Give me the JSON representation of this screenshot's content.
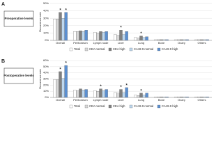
{
  "chart_data": [
    {
      "type": "bar",
      "panel": "A",
      "group_label": "Preoperative levels",
      "ylabel": "Recurrence rate",
      "categories": [
        "Overall",
        "Peritoneum",
        "Lymph node",
        "Liver",
        "Lung",
        "Bone",
        "Ovary",
        "Others"
      ],
      "series": [
        {
          "name": "Total",
          "color": "#ffffff",
          "values": [
            29,
            12,
            11,
            8,
            4,
            1,
            1,
            1
          ]
        },
        {
          "name": "CEA normal",
          "color": "#d9d9d9",
          "values": [
            29,
            12,
            10,
            7,
            3,
            1,
            1,
            1
          ]
        },
        {
          "name": "CEA high",
          "color": "#808080",
          "values": [
            38,
            13,
            12,
            14,
            6,
            1,
            1,
            1
          ]
        },
        {
          "name": "CA19-9 normal",
          "color": "#bdd7ee",
          "values": [
            30,
            12,
            11,
            8,
            4,
            1,
            1,
            1
          ]
        },
        {
          "name": "CA19-9 high",
          "color": "#5b8fd0",
          "values": [
            38,
            14,
            12,
            12,
            5,
            1,
            1,
            1
          ]
        }
      ],
      "annotations": [
        {
          "text": "*",
          "category": "Overall",
          "series": "CEA high"
        },
        {
          "text": "*",
          "category": "Overall",
          "series": "CA19-9 high"
        },
        {
          "text": "*",
          "category": "Liver",
          "series": "CEA high"
        },
        {
          "text": "*",
          "category": "Lung",
          "series": "CEA high"
        }
      ],
      "ylim": [
        0,
        50
      ],
      "yticks": [
        {
          "value": 0,
          "label": "0%"
        },
        {
          "value": 10,
          "label": "10%"
        },
        {
          "value": 20,
          "label": "20%"
        },
        {
          "value": 30,
          "label": "30%"
        },
        {
          "value": 40,
          "label": "40%"
        },
        {
          "value": 50,
          "label": "50%"
        }
      ],
      "grid": true,
      "legend": "bottom"
    },
    {
      "type": "bar",
      "panel": "B",
      "group_label": "Postoperative levels",
      "ylabel": "Recurrence rate",
      "categories": [
        "Overall",
        "Peritoneum",
        "Lymph node",
        "Liver",
        "Lung",
        "Bone",
        "Ovary",
        "Others"
      ],
      "series": [
        {
          "name": "Total",
          "color": "#ffffff",
          "values": [
            29,
            12,
            11,
            8,
            4,
            1,
            1,
            1
          ]
        },
        {
          "name": "CEA normal",
          "color": "#d9d9d9",
          "values": [
            29,
            11,
            10,
            7,
            3,
            1,
            1,
            1
          ]
        },
        {
          "name": "CEA high",
          "color": "#808080",
          "values": [
            42,
            14,
            14,
            13,
            7,
            1,
            1,
            1
          ]
        },
        {
          "name": "CA19-9 normal",
          "color": "#bdd7ee",
          "values": [
            31,
            12,
            11,
            8,
            4,
            1,
            1,
            1
          ]
        },
        {
          "name": "CA19-9 high",
          "color": "#5b8fd0",
          "values": [
            52,
            13,
            13,
            16,
            7,
            1,
            1,
            1
          ]
        }
      ],
      "annotations": [
        {
          "text": "*",
          "category": "Overall",
          "series": "CEA high"
        },
        {
          "text": "*",
          "category": "Overall",
          "series": "CA19-9 high"
        },
        {
          "text": "*",
          "category": "Lymph node",
          "series": "CEA high"
        },
        {
          "text": "*",
          "category": "Liver",
          "series": "CEA high"
        },
        {
          "text": "*",
          "category": "Liver",
          "series": "CA19-9 high"
        },
        {
          "text": "*",
          "category": "Lung",
          "series": "CEA high"
        }
      ],
      "ylim": [
        0,
        60
      ],
      "yticks": [
        {
          "value": 0,
          "label": "0%"
        },
        {
          "value": 10,
          "label": "10%"
        },
        {
          "value": 20,
          "label": "20%"
        },
        {
          "value": 30,
          "label": "30%"
        },
        {
          "value": 40,
          "label": "40%"
        },
        {
          "value": 50,
          "label": "50%"
        },
        {
          "value": 60,
          "label": "60%"
        }
      ],
      "grid": true,
      "legend": "bottom"
    }
  ]
}
